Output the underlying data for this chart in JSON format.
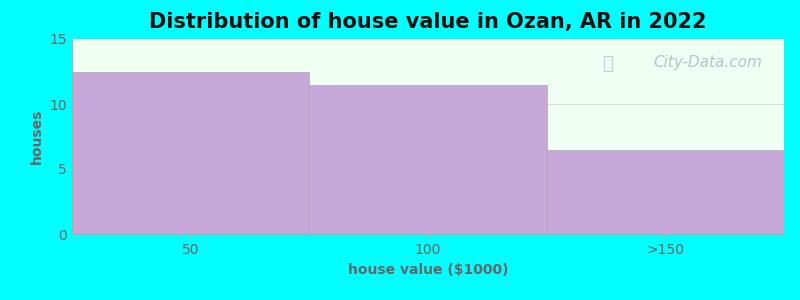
{
  "title": "Distribution of house value in Ozan, AR in 2022",
  "categories": [
    "50",
    "100",
    ">150"
  ],
  "values": [
    12.5,
    11.5,
    6.5
  ],
  "bar_color": "#c8a8d8",
  "bar_edges": [
    0,
    1,
    2,
    3
  ],
  "ylim": [
    0,
    15
  ],
  "yticks": [
    0,
    5,
    10,
    15
  ],
  "xtick_positions": [
    0.5,
    1.5,
    2.5
  ],
  "xlabel": "house value ($1000)",
  "ylabel": "houses",
  "title_fontsize": 15,
  "label_fontsize": 10,
  "tick_fontsize": 10,
  "background_color": "#00ffff",
  "plot_bg_color": "#f0fff4",
  "watermark_text": "City-Data.com",
  "watermark_color": "#aabbbb",
  "grid_color": "#dddddd",
  "tick_color": "#666666",
  "spine_color": "#aaaaaa"
}
